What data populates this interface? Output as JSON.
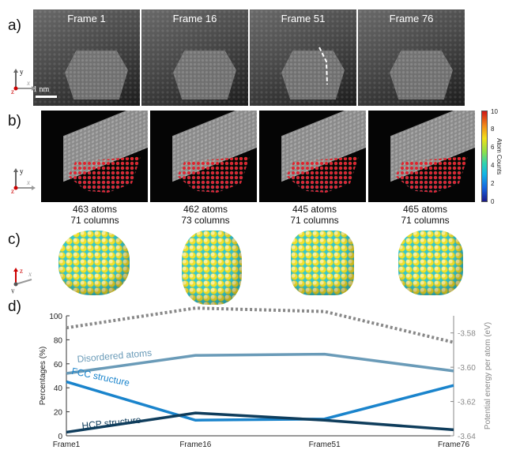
{
  "panels": {
    "a": "a)",
    "b": "b)",
    "c": "c)",
    "d": "d)"
  },
  "frames": [
    "Frame 1",
    "Frame 16",
    "Frame 51",
    "Frame 76"
  ],
  "scale_bar": "1 nm",
  "axes": {
    "y": "y",
    "x": "x",
    "z": "z"
  },
  "colorbar": {
    "label": "Atom Counts",
    "ticks": [
      "10",
      "8",
      "6",
      "4",
      "2",
      "0"
    ]
  },
  "counts": [
    {
      "atoms": "463 atoms",
      "columns": "71 columns"
    },
    {
      "atoms": "462 atoms",
      "columns": "73 columns"
    },
    {
      "atoms": "445 atoms",
      "columns": "71 columns"
    },
    {
      "atoms": "465 atoms",
      "columns": "71 columns"
    }
  ],
  "chart_data": {
    "type": "line",
    "categories": [
      "Frame1",
      "Frame16",
      "Frame51",
      "Frame76"
    ],
    "ylabel": "Percentages (%)",
    "y2label": "Potential energy per atom (eV)",
    "ylim": [
      0,
      100
    ],
    "y2lim": [
      -3.64,
      -3.57
    ],
    "yticks": [
      "0",
      "20",
      "40",
      "60",
      "80",
      "100"
    ],
    "y2ticks": [
      "-3.58",
      "-3.60",
      "-3.62",
      "-3.64"
    ],
    "series": [
      {
        "name": "Disordered atoms",
        "axis": "left",
        "values": [
          52,
          67,
          68,
          54
        ],
        "color": "#6a9bb8"
      },
      {
        "name": "FCC structure",
        "axis": "left",
        "values": [
          45,
          13,
          14,
          42
        ],
        "color": "#1a84cc"
      },
      {
        "name": "HCP structure",
        "axis": "left",
        "values": [
          3,
          19,
          13,
          5
        ],
        "color": "#0f3d5c"
      },
      {
        "name": "",
        "axis": "right",
        "values": [
          -3.577,
          -3.5655,
          -3.5675,
          -3.5855
        ],
        "color": "#888888",
        "style": "dotted"
      }
    ]
  }
}
